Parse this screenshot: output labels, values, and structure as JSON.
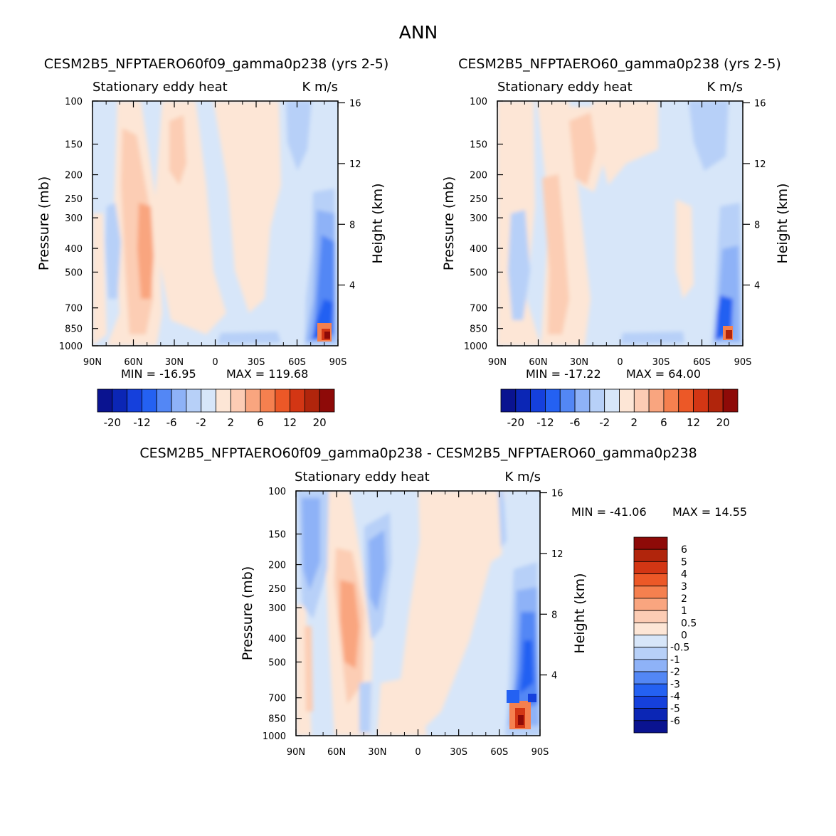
{
  "season_title": "ANN",
  "colors": {
    "seq": [
      "#0a1390",
      "#0b26b5",
      "#1540dc",
      "#2461f2",
      "#5387f5",
      "#8eb2f7",
      "#b7d0f8",
      "#d7e6f9",
      "#fde6d6",
      "#fcccb4",
      "#f9a57f",
      "#f5804f",
      "#ec5827",
      "#d33614",
      "#b1250c",
      "#8e0a08"
    ],
    "diff": [
      "#0a1390",
      "#0b26b5",
      "#1540dc",
      "#2461f2",
      "#5387f5",
      "#8eb2f7",
      "#b7d0f8",
      "#d7e6f9",
      "#fde6d6",
      "#fcccb4",
      "#f9a57f",
      "#f5804f",
      "#ec5827",
      "#d33614",
      "#b1250c",
      "#8e0a08"
    ]
  },
  "chart_data": [
    {
      "type": "heatmap",
      "id": "panel1",
      "title": "CESM2B5_NFPTAERO60f09_gamma0p238 (yrs 2-5)",
      "left_label": "Stationary eddy heat",
      "right_label": "K m/s",
      "xlabel": "",
      "ylabel": "Pressure (mb)",
      "y2label": "Height (km)",
      "x_ticks": [
        "90N",
        "60N",
        "30N",
        "0",
        "30S",
        "60S",
        "90S"
      ],
      "y_ticks": [
        100,
        150,
        200,
        250,
        300,
        400,
        500,
        700,
        850,
        1000
      ],
      "height_ticks": [
        16,
        12,
        8,
        4
      ],
      "ylim": [
        1000,
        100
      ],
      "min_text": "MIN = -16.95",
      "max_text": "MAX = 119.68",
      "colorbar_labels": [
        "-20",
        "-12",
        "-6",
        "-2",
        "2",
        "6",
        "12",
        "20"
      ],
      "contour_levels": [
        -20,
        -16,
        -12,
        -8,
        -6,
        -4,
        -2,
        0,
        2,
        4,
        6,
        8,
        12,
        16,
        20
      ]
    },
    {
      "type": "heatmap",
      "id": "panel2",
      "title": "CESM2B5_NFPTAERO60_gamma0p238 (yrs 2-5)",
      "left_label": "Stationary eddy heat",
      "right_label": "K m/s",
      "xlabel": "",
      "ylabel": "Pressure (mb)",
      "y2label": "Height (km)",
      "x_ticks": [
        "90N",
        "60N",
        "30N",
        "0",
        "30S",
        "60S",
        "90S"
      ],
      "y_ticks": [
        100,
        150,
        200,
        250,
        300,
        400,
        500,
        700,
        850,
        1000
      ],
      "height_ticks": [
        16,
        12,
        8,
        4
      ],
      "ylim": [
        1000,
        100
      ],
      "min_text": "MIN = -17.22",
      "max_text": "MAX = 64.00",
      "colorbar_labels": [
        "-20",
        "-12",
        "-6",
        "-2",
        "2",
        "6",
        "12",
        "20"
      ],
      "contour_levels": [
        -20,
        -16,
        -12,
        -8,
        -6,
        -4,
        -2,
        0,
        2,
        4,
        6,
        8,
        12,
        16,
        20
      ]
    },
    {
      "type": "heatmap",
      "id": "panel3",
      "title": "CESM2B5_NFPTAERO60f09_gamma0p238 - CESM2B5_NFPTAERO60_gamma0p238",
      "left_label": "Stationary eddy heat",
      "right_label": "K m/s",
      "xlabel": "",
      "ylabel": "Pressure (mb)",
      "y2label": "Height (km)",
      "x_ticks": [
        "90N",
        "60N",
        "30N",
        "0",
        "30S",
        "60S",
        "90S"
      ],
      "y_ticks": [
        100,
        150,
        200,
        250,
        300,
        400,
        500,
        700,
        850,
        1000
      ],
      "height_ticks": [
        16,
        12,
        8,
        4
      ],
      "ylim": [
        1000,
        100
      ],
      "min_text": "MIN = -41.06",
      "max_text": "MAX = 14.55",
      "colorbar_labels": [
        "6",
        "5",
        "4",
        "3",
        "2",
        "1",
        "0.5",
        "0",
        "-0.5",
        "-1",
        "-2",
        "-3",
        "-4",
        "-5",
        "-6"
      ],
      "contour_levels": [
        -6,
        -5,
        -4,
        -3,
        -2,
        -1,
        -0.5,
        0,
        0.5,
        1,
        2,
        3,
        4,
        5,
        6
      ]
    }
  ]
}
